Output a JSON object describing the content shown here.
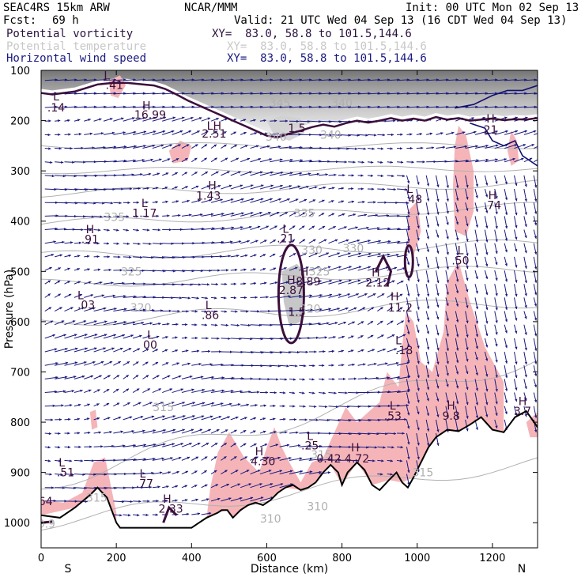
{
  "header": {
    "model": "SEAC4RS 15km ARW",
    "center": "NCAR/MMM",
    "init": "Init: 00 UTC Mon 02 Sep 13",
    "fcst_label": "Fcst:",
    "fcst_value": "69 h",
    "valid": "Valid: 21 UTC Wed 04 Sep 13 (16 CDT Wed 04 Sep 13)",
    "fields": [
      {
        "name": "Potential vorticity",
        "xy": "XY=  83.0, 58.8 to 101.5,144.6"
      },
      {
        "name": "Potential temperature",
        "xy": "XY=  83.0, 58.8 to 101.5,144.6"
      },
      {
        "name": "Horizontal wind speed",
        "xy": "XY=  83.0, 58.8 to 101.5,144.6"
      }
    ]
  },
  "chart_data": {
    "type": "cross-section",
    "xlabel": "Distance (km)",
    "ylabel": "Pressure (hPa)",
    "xlim": [
      0,
      1320
    ],
    "ylim": [
      1050,
      100
    ],
    "x_ticks": [
      0,
      200,
      400,
      600,
      800,
      1000,
      1200
    ],
    "y_ticks": [
      100,
      200,
      300,
      400,
      500,
      600,
      700,
      800,
      900,
      1000
    ],
    "x_end_labels": {
      "left": "S",
      "right": "N"
    },
    "theta_labels": [
      {
        "text": "345",
        "x": 635,
        "p": 172
      },
      {
        "text": "340",
        "x": 800,
        "p": 172
      },
      {
        "text": "340",
        "x": 625,
        "p": 240
      },
      {
        "text": "340",
        "x": 770,
        "p": 236
      },
      {
        "text": "335",
        "x": 195,
        "p": 400
      },
      {
        "text": "335",
        "x": 700,
        "p": 392
      },
      {
        "text": "330",
        "x": 720,
        "p": 465
      },
      {
        "text": "330",
        "x": 830,
        "p": 462
      },
      {
        "text": "325",
        "x": 240,
        "p": 508
      },
      {
        "text": "325",
        "x": 740,
        "p": 508
      },
      {
        "text": "320",
        "x": 265,
        "p": 580
      },
      {
        "text": "320",
        "x": 715,
        "p": 582
      },
      {
        "text": "315",
        "x": 325,
        "p": 778
      },
      {
        "text": "315",
        "x": 745,
        "p": 872
      },
      {
        "text": "315",
        "x": 1015,
        "p": 908
      },
      {
        "text": "315",
        "x": 148,
        "p": 958
      },
      {
        "text": "310",
        "x": 735,
        "p": 975
      },
      {
        "text": "310",
        "x": 610,
        "p": 1000
      },
      {
        "text": "30.9",
        "x": 5,
        "p": 1010
      }
    ],
    "extrema": [
      {
        "text": "L",
        "x": 175,
        "p": 118,
        "kind": "L"
      },
      {
        "text": ".41",
        "x": 195,
        "p": 137,
        "kind": "v"
      },
      {
        "text": "L",
        "x": 40,
        "p": 160,
        "kind": "L"
      },
      {
        "text": ".14",
        "x": 40,
        "p": 182,
        "kind": "v"
      },
      {
        "text": "H",
        "x": 280,
        "p": 178,
        "kind": "H"
      },
      {
        "text": "16.99",
        "x": 290,
        "p": 196,
        "kind": "v"
      },
      {
        "text": "LH",
        "x": 460,
        "p": 218,
        "kind": "L"
      },
      {
        "text": "2.51",
        "x": 460,
        "p": 234,
        "kind": "v"
      },
      {
        "text": "1.5",
        "x": 680,
        "p": 223,
        "kind": "v"
      },
      {
        "text": "H",
        "x": 1195,
        "p": 204,
        "kind": "H"
      },
      {
        "text": "21",
        "x": 1195,
        "p": 226,
        "kind": "v"
      },
      {
        "text": "H",
        "x": 455,
        "p": 337,
        "kind": "H"
      },
      {
        "text": "1.43",
        "x": 445,
        "p": 357,
        "kind": "v"
      },
      {
        "text": "L",
        "x": 275,
        "p": 372,
        "kind": "L"
      },
      {
        "text": "1.17",
        "x": 275,
        "p": 392,
        "kind": "v"
      },
      {
        "text": "L",
        "x": 980,
        "p": 344,
        "kind": "L"
      },
      {
        "text": ".48",
        "x": 990,
        "p": 364,
        "kind": "v"
      },
      {
        "text": "H",
        "x": 1200,
        "p": 356,
        "kind": "H"
      },
      {
        "text": ".74",
        "x": 1200,
        "p": 376,
        "kind": "v"
      },
      {
        "text": "H",
        "x": 130,
        "p": 424,
        "kind": "H"
      },
      {
        "text": ".91",
        "x": 130,
        "p": 444,
        "kind": "v"
      },
      {
        "text": "L",
        "x": 650,
        "p": 423,
        "kind": "L"
      },
      {
        "text": ".21",
        "x": 650,
        "p": 442,
        "kind": "v"
      },
      {
        "text": "L",
        "x": 1115,
        "p": 466,
        "kind": "L"
      },
      {
        "text": ".50",
        "x": 1115,
        "p": 486,
        "kind": "v"
      },
      {
        "text": "H",
        "x": 665,
        "p": 525,
        "kind": "H"
      },
      {
        "text": "2.87",
        "x": 665,
        "p": 545,
        "kind": "v"
      },
      {
        "text": "H",
        "x": 700,
        "p": 508,
        "kind": "H"
      },
      {
        "text": "8.89",
        "x": 710,
        "p": 528,
        "kind": "v"
      },
      {
        "text": "H",
        "x": 890,
        "p": 510,
        "kind": "H"
      },
      {
        "text": "2.12",
        "x": 895,
        "p": 530,
        "kind": "v"
      },
      {
        "text": "H",
        "x": 940,
        "p": 558,
        "kind": "H"
      },
      {
        "text": "11.2",
        "x": 955,
        "p": 580,
        "kind": "v"
      },
      {
        "text": "L",
        "x": 105,
        "p": 555,
        "kind": "L"
      },
      {
        "text": ".03",
        "x": 120,
        "p": 574,
        "kind": "v"
      },
      {
        "text": "L",
        "x": 445,
        "p": 575,
        "kind": "L"
      },
      {
        "text": ".86",
        "x": 450,
        "p": 595,
        "kind": "v"
      },
      {
        "text": "1.5",
        "x": 680,
        "p": 588,
        "kind": "v"
      },
      {
        "text": "L",
        "x": 290,
        "p": 634,
        "kind": "L"
      },
      {
        "text": "00",
        "x": 290,
        "p": 654,
        "kind": "v"
      },
      {
        "text": "L",
        "x": 950,
        "p": 645,
        "kind": "L"
      },
      {
        "text": ".18",
        "x": 965,
        "p": 665,
        "kind": "v"
      },
      {
        "text": "L",
        "x": 935,
        "p": 775,
        "kind": "L"
      },
      {
        "text": ".53",
        "x": 935,
        "p": 795,
        "kind": "v"
      },
      {
        "text": "H",
        "x": 1090,
        "p": 775,
        "kind": "H"
      },
      {
        "text": "9.8",
        "x": 1090,
        "p": 795,
        "kind": "v"
      },
      {
        "text": "H",
        "x": 1280,
        "p": 766,
        "kind": "H"
      },
      {
        "text": "3.7",
        "x": 1280,
        "p": 786,
        "kind": "v"
      },
      {
        "text": "L",
        "x": 715,
        "p": 835,
        "kind": "L"
      },
      {
        "text": ".25",
        "x": 715,
        "p": 854,
        "kind": "v"
      },
      {
        "text": "H",
        "x": 580,
        "p": 866,
        "kind": "H"
      },
      {
        "text": "4.30",
        "x": 590,
        "p": 886,
        "kind": "v"
      },
      {
        "text": "H",
        "x": 835,
        "p": 858,
        "kind": "H"
      },
      {
        "text": "4.72",
        "x": 840,
        "p": 880,
        "kind": "v"
      },
      {
        "text": "0.42",
        "x": 765,
        "p": 880,
        "kind": "v"
      },
      {
        "text": "L",
        "x": 55,
        "p": 888,
        "kind": "L"
      },
      {
        "text": ".51",
        "x": 65,
        "p": 908,
        "kind": "v"
      },
      {
        "text": "L",
        "x": 270,
        "p": 910,
        "kind": "L"
      },
      {
        "text": ".77",
        "x": 275,
        "p": 930,
        "kind": "v"
      },
      {
        "text": "H",
        "x": 335,
        "p": 960,
        "kind": "H"
      },
      {
        "text": "2.33",
        "x": 345,
        "p": 980,
        "kind": "v"
      },
      {
        "text": "64",
        "x": 12,
        "p": 965,
        "kind": "v"
      }
    ],
    "terrain": [
      [
        0,
        985
      ],
      [
        50,
        990
      ],
      [
        90,
        970
      ],
      [
        130,
        945
      ],
      [
        150,
        930
      ],
      [
        175,
        950
      ],
      [
        200,
        1000
      ],
      [
        210,
        1010
      ],
      [
        400,
        1010
      ],
      [
        420,
        1000
      ],
      [
        440,
        990
      ],
      [
        470,
        980
      ],
      [
        480,
        975
      ],
      [
        495,
        975
      ],
      [
        510,
        990
      ],
      [
        530,
        975
      ],
      [
        550,
        965
      ],
      [
        570,
        960
      ],
      [
        590,
        965
      ],
      [
        610,
        955
      ],
      [
        630,
        940
      ],
      [
        650,
        930
      ],
      [
        670,
        925
      ],
      [
        690,
        935
      ],
      [
        710,
        930
      ],
      [
        730,
        920
      ],
      [
        750,
        900
      ],
      [
        770,
        885
      ],
      [
        790,
        900
      ],
      [
        800,
        925
      ],
      [
        815,
        900
      ],
      [
        840,
        880
      ],
      [
        860,
        895
      ],
      [
        880,
        925
      ],
      [
        900,
        935
      ],
      [
        925,
        915
      ],
      [
        945,
        900
      ],
      [
        960,
        920
      ],
      [
        975,
        930
      ],
      [
        990,
        910
      ],
      [
        1010,
        880
      ],
      [
        1030,
        850
      ],
      [
        1050,
        830
      ],
      [
        1080,
        815
      ],
      [
        1110,
        818
      ],
      [
        1140,
        805
      ],
      [
        1170,
        790
      ],
      [
        1200,
        815
      ],
      [
        1230,
        820
      ],
      [
        1260,
        790
      ],
      [
        1290,
        778
      ],
      [
        1320,
        810
      ]
    ],
    "pv_2_line": [
      [
        0,
        145
      ],
      [
        30,
        148
      ],
      [
        60,
        145
      ],
      [
        90,
        142
      ],
      [
        120,
        135
      ],
      [
        150,
        128
      ],
      [
        190,
        125
      ],
      [
        230,
        125
      ],
      [
        270,
        128
      ],
      [
        300,
        130
      ],
      [
        330,
        137
      ],
      [
        360,
        148
      ],
      [
        390,
        160
      ],
      [
        420,
        170
      ],
      [
        450,
        180
      ],
      [
        480,
        190
      ],
      [
        510,
        200
      ],
      [
        540,
        210
      ],
      [
        570,
        220
      ],
      [
        600,
        230
      ],
      [
        630,
        233
      ],
      [
        660,
        226
      ],
      [
        690,
        220
      ],
      [
        720,
        213
      ],
      [
        750,
        208
      ],
      [
        780,
        212
      ],
      [
        810,
        205
      ],
      [
        840,
        200
      ],
      [
        870,
        204
      ],
      [
        900,
        200
      ],
      [
        930,
        195
      ],
      [
        960,
        200
      ],
      [
        990,
        196
      ],
      [
        1020,
        200
      ],
      [
        1050,
        193
      ],
      [
        1080,
        198
      ],
      [
        1110,
        195
      ],
      [
        1140,
        200
      ],
      [
        1170,
        198
      ],
      [
        1200,
        196
      ],
      [
        1230,
        199
      ],
      [
        1260,
        197
      ],
      [
        1290,
        198
      ],
      [
        1320,
        195
      ]
    ],
    "colors": {
      "wind_vector": "#1a1a80",
      "pv_contour": "#3b0f3b",
      "theta_contour": "#b0b0b0",
      "pv_shade": "#f5b5b8",
      "strat_shade": "#8a8a8a",
      "terrain": "#000000"
    }
  }
}
